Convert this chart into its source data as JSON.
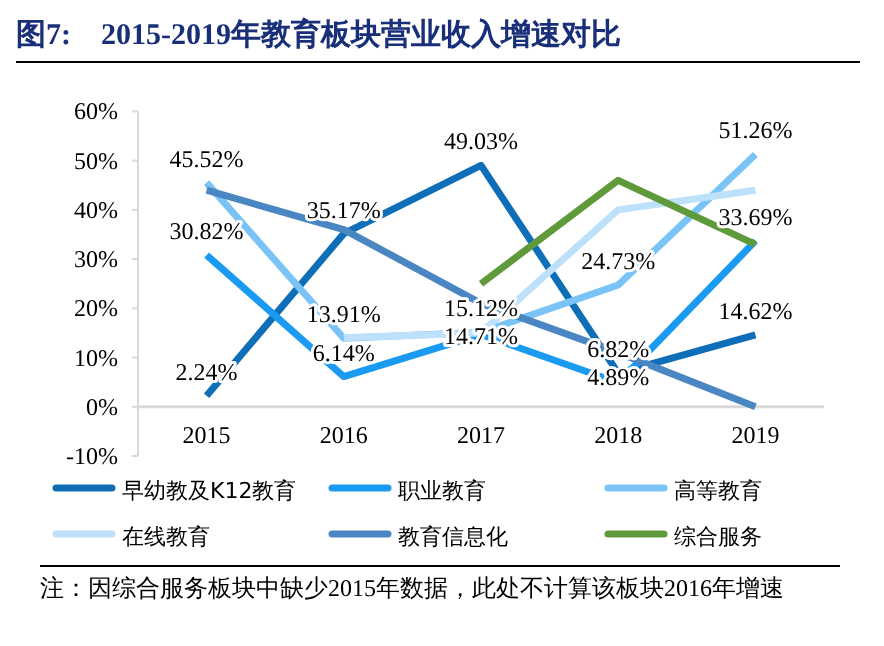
{
  "chart_data": {
    "type": "line",
    "title": "图7:　2015-2019年教育板块营业收入增速对比",
    "categories": [
      "2015",
      "2016",
      "2017",
      "2018",
      "2019"
    ],
    "series": [
      {
        "name": "早幼教及K12教育",
        "color": "#0e6eb8",
        "values": [
          2.24,
          35.17,
          49.03,
          6.82,
          14.62
        ],
        "value_labels": [
          "2.24%",
          "35.17%",
          "49.03%",
          "6.82%",
          "14.62%"
        ]
      },
      {
        "name": "职业教育",
        "color": "#1a9af0",
        "values": [
          30.82,
          6.14,
          14.71,
          4.89,
          33.69
        ],
        "value_labels": [
          "30.82%",
          "6.14%",
          "14.71%",
          "4.89%",
          "33.69%"
        ]
      },
      {
        "name": "高等教育",
        "color": "#7ac3f7",
        "values": [
          45.52,
          13.91,
          15.12,
          24.73,
          51.26
        ],
        "value_labels": [
          "45.52%",
          "13.91%",
          "15.12%",
          "24.73%",
          "51.26%"
        ]
      },
      {
        "name": "在线教育",
        "color": "#bde1fb",
        "values": [
          null,
          14,
          15,
          40,
          44
        ]
      },
      {
        "name": "教育信息化",
        "color": "#4a86c2",
        "values": [
          44,
          36,
          21,
          11,
          0
        ]
      },
      {
        "name": "综合服务",
        "color": "#5f9a3a",
        "values": [
          null,
          null,
          25,
          46,
          33
        ]
      }
    ],
    "ylim": [
      -10,
      60
    ],
    "yticks": [
      {
        "value": -10,
        "label": "-10%"
      },
      {
        "value": 0,
        "label": "0%"
      },
      {
        "value": 10,
        "label": "10%"
      },
      {
        "value": 20,
        "label": "20%"
      },
      {
        "value": 30,
        "label": "30%"
      },
      {
        "value": 40,
        "label": "40%"
      },
      {
        "value": 50,
        "label": "50%"
      },
      {
        "value": 60,
        "label": "60%"
      }
    ],
    "legend": "bottom",
    "grid": false,
    "annotations": [
      "注：因综合服务板块中缺少2015年数据，此处不计算该板块2016年增速"
    ]
  }
}
